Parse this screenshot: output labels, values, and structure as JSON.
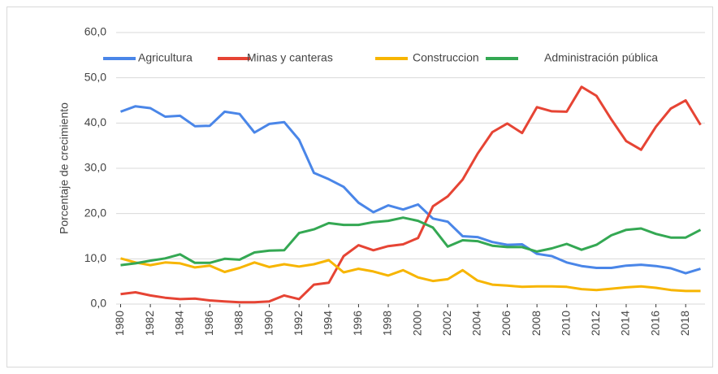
{
  "chart_data": {
    "type": "line",
    "ylabel": "Porcentaje de crecimiento",
    "x": [
      1980,
      1981,
      1982,
      1983,
      1984,
      1985,
      1986,
      1987,
      1988,
      1989,
      1990,
      1991,
      1992,
      1993,
      1994,
      1995,
      1996,
      1997,
      1998,
      1999,
      2000,
      2001,
      2002,
      2003,
      2004,
      2005,
      2006,
      2007,
      2008,
      2009,
      2010,
      2011,
      2012,
      2013,
      2014,
      2015,
      2016,
      2017,
      2018,
      2019
    ],
    "series": [
      {
        "name": "Agricultura",
        "color": "#4a86e8",
        "values": [
          42.5,
          43.7,
          43.3,
          41.4,
          41.6,
          39.3,
          39.4,
          42.5,
          42.0,
          37.9,
          39.8,
          40.2,
          36.3,
          29.0,
          27.6,
          25.9,
          22.4,
          20.3,
          21.8,
          20.9,
          22.0,
          18.9,
          18.2,
          15.0,
          14.8,
          13.7,
          13.1,
          13.2,
          11.1,
          10.6,
          9.2,
          8.4,
          8.0,
          8.0,
          8.5,
          8.7,
          8.4,
          7.9,
          6.8,
          7.8
        ]
      },
      {
        "name": "Minas y canteras",
        "color": "#e64434",
        "values": [
          2.2,
          2.6,
          1.9,
          1.4,
          1.1,
          1.2,
          0.8,
          0.6,
          0.4,
          0.4,
          0.6,
          1.9,
          1.1,
          4.3,
          4.7,
          10.6,
          13.0,
          11.9,
          12.8,
          13.2,
          14.6,
          21.6,
          23.8,
          27.5,
          33.2,
          38.0,
          39.9,
          37.8,
          43.5,
          42.6,
          42.5,
          48.0,
          46.0,
          40.8,
          36.0,
          34.1,
          39.2,
          43.2,
          45.0,
          39.6
        ]
      },
      {
        "name": "Construccion",
        "color": "#f7b500",
        "values": [
          10.1,
          9.2,
          8.6,
          9.2,
          9.0,
          8.1,
          8.5,
          7.1,
          8.0,
          9.2,
          8.2,
          8.8,
          8.3,
          8.8,
          9.7,
          7.0,
          7.8,
          7.2,
          6.3,
          7.5,
          5.9,
          5.1,
          5.5,
          7.5,
          5.2,
          4.3,
          4.1,
          3.8,
          3.9,
          3.9,
          3.8,
          3.3,
          3.1,
          3.4,
          3.7,
          3.9,
          3.6,
          3.1,
          2.9,
          2.9
        ]
      },
      {
        "name": "Administración pública",
        "color": "#34a853",
        "values": [
          8.6,
          9.0,
          9.6,
          10.1,
          11.0,
          9.1,
          9.1,
          10.0,
          9.8,
          11.4,
          11.8,
          11.9,
          15.7,
          16.5,
          17.9,
          17.5,
          17.5,
          18.1,
          18.4,
          19.1,
          18.4,
          16.9,
          12.7,
          14.1,
          13.9,
          12.9,
          12.6,
          12.6,
          11.6,
          12.3,
          13.3,
          12.0,
          13.1,
          15.2,
          16.4,
          16.7,
          15.5,
          14.7,
          14.7,
          16.4
        ]
      }
    ],
    "xlim": [
      1979.7,
      2019.3
    ],
    "xticks": [
      1980,
      1982,
      1984,
      1986,
      1988,
      1990,
      1992,
      1994,
      1996,
      1998,
      2000,
      2002,
      2004,
      2006,
      2008,
      2010,
      2012,
      2014,
      2016,
      2018
    ],
    "ylim": [
      0,
      60
    ],
    "yticks": [
      {
        "value": 0,
        "label": "0,0"
      },
      {
        "value": 10,
        "label": "10,0"
      },
      {
        "value": 20,
        "label": "20,0"
      },
      {
        "value": 30,
        "label": "30,0"
      },
      {
        "value": 40,
        "label": "40,0"
      },
      {
        "value": 50,
        "label": "50,0"
      },
      {
        "value": 60,
        "label": "60,0"
      }
    ],
    "grid": true,
    "legend": "top"
  }
}
